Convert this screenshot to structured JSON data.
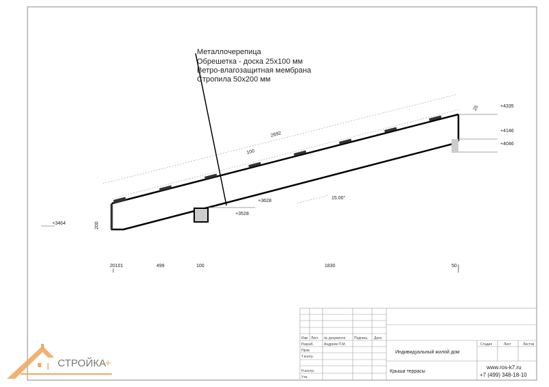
{
  "callout": {
    "lines": [
      "Металлочерепица",
      "Обрешетка - доска 25х100 мм",
      "Ветро-влагозащитная мембрана",
      "Стропила 50х200 мм"
    ]
  },
  "dimensions": {
    "length": "2692",
    "spacing": "100",
    "height": "200",
    "end_height": "25",
    "angle": "15.00°",
    "bottom": [
      "20101",
      "499",
      "100",
      "1830",
      "50"
    ]
  },
  "levels": [
    "+3464",
    "+3628",
    "+3528",
    "+4335",
    "+4146",
    "+4046"
  ],
  "title_block": {
    "headers": [
      "Изм",
      "Лист",
      "№ документа",
      "Подпись",
      "Дата"
    ],
    "rows": [
      "Разраб.",
      "Пров.",
      "Т.контр.",
      "",
      "Н.контр.",
      "Утв."
    ],
    "developer": "Андреев П.М.",
    "project": "Индивидуальный жилой дом",
    "sheet_title": "Крыша террасы",
    "stage_headers": [
      "Стадия",
      "Лист",
      "Листов"
    ],
    "website": "www.ros-k7.ru",
    "phone": "+7 (499) 348-18-10"
  },
  "logo": {
    "text": "СТРОЙКА+",
    "color": "#f0a860"
  }
}
